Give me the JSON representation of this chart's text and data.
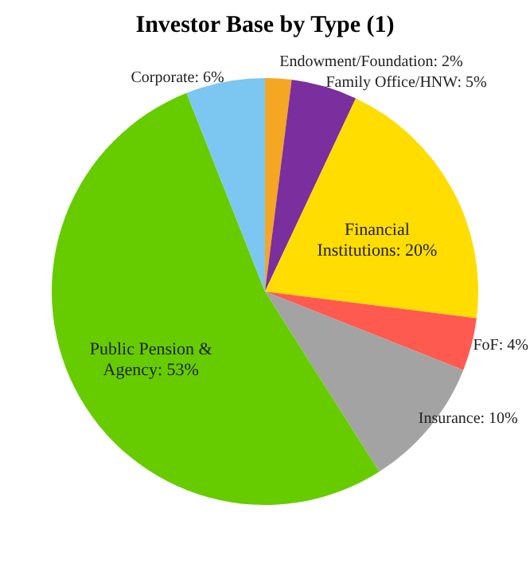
{
  "chart_data": {
    "type": "pie",
    "title": "Investor Base by Type (1)",
    "categories": [
      "Endowment/Foundation",
      "Family Office/HNW",
      "Financial Institutions",
      "FoF",
      "Insurance",
      "Public Pension & Agency",
      "Corporate"
    ],
    "values": [
      2,
      5,
      20,
      4,
      10,
      53,
      6
    ],
    "value_labels": [
      "2%",
      "5%",
      "20%",
      "4%",
      "10%",
      "53%",
      "6%"
    ],
    "colors": [
      "#f5a623",
      "#7b2f9e",
      "#ffdd00",
      "#ff5a4f",
      "#a3a3a3",
      "#66cc00",
      "#7cc6f2"
    ]
  }
}
